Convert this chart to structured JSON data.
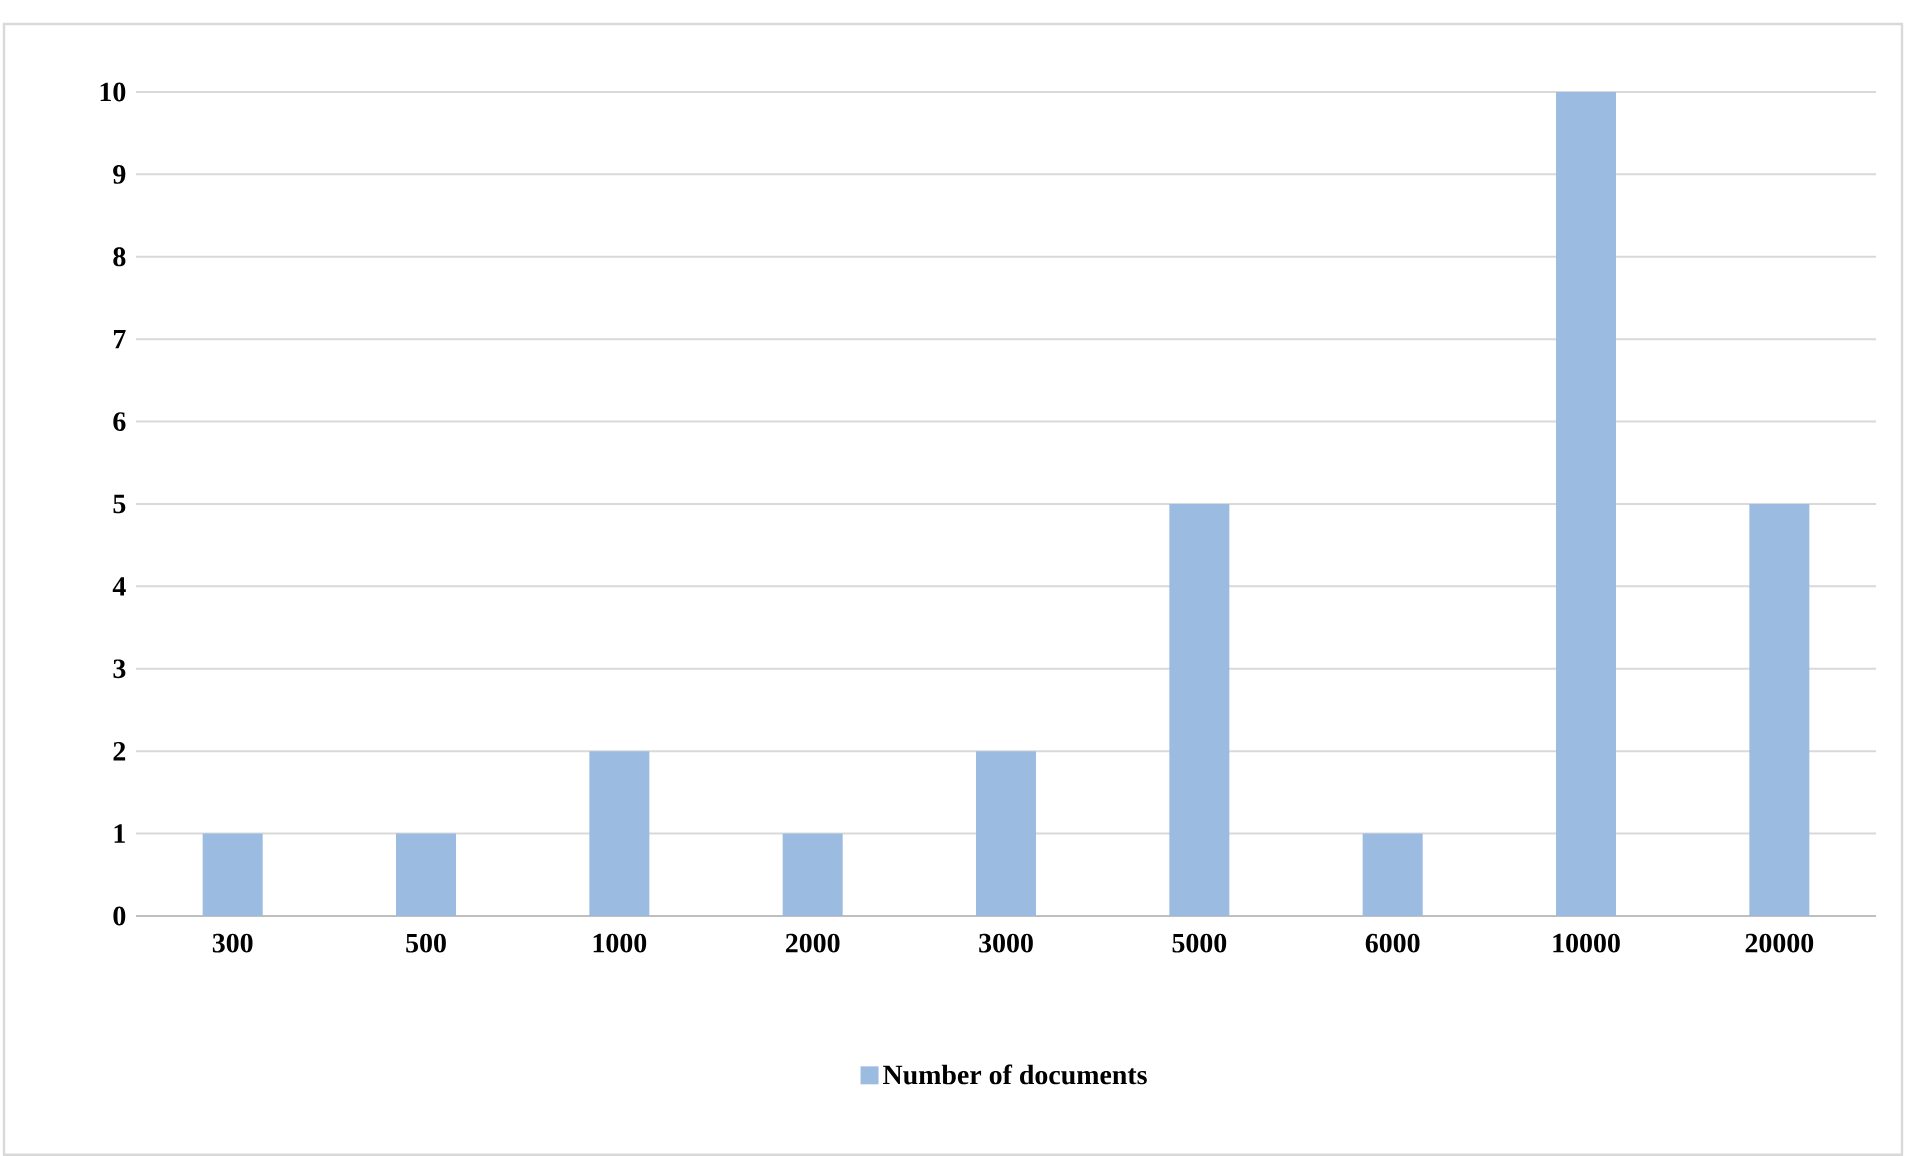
{
  "chart_data": {
    "type": "bar",
    "categories": [
      "300",
      "500",
      "1000",
      "2000",
      "3000",
      "5000",
      "6000",
      "10000",
      "20000"
    ],
    "series": [
      {
        "name": "Number of documents",
        "color": "#9bbbe0",
        "values": [
          1,
          1,
          2,
          1,
          2,
          5,
          1,
          10,
          5
        ]
      }
    ],
    "ylim": [
      0,
      10
    ],
    "yticks": [
      0,
      1,
      2,
      3,
      4,
      5,
      6,
      7,
      8,
      9,
      10
    ],
    "grid": "y",
    "legend": "bottom"
  }
}
